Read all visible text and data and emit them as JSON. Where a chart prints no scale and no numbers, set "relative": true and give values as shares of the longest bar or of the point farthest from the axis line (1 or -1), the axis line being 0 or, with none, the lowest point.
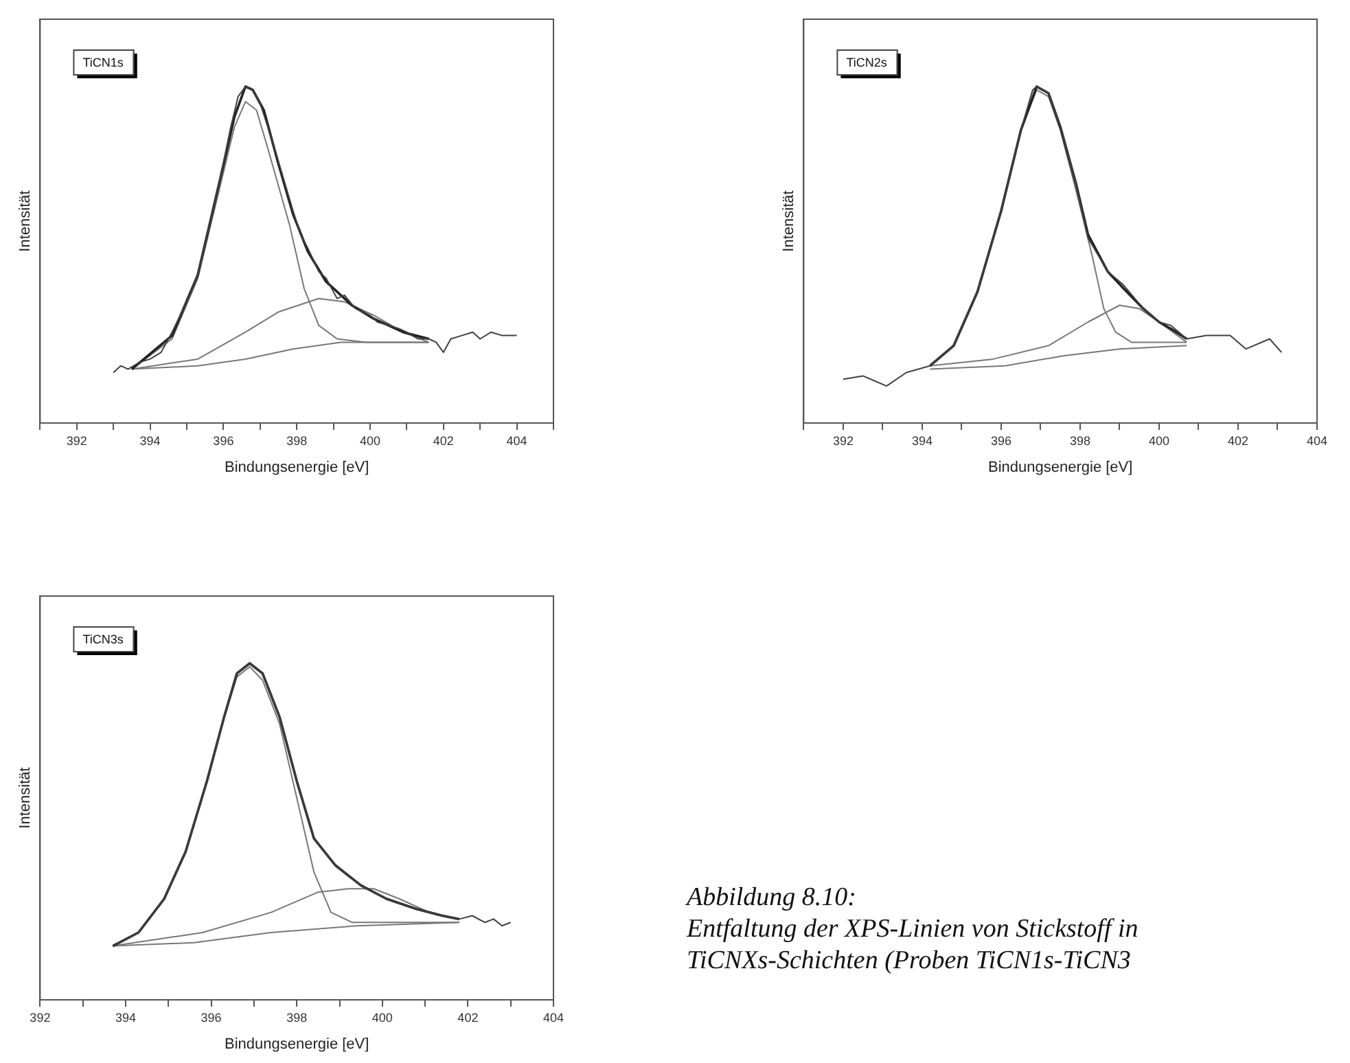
{
  "chart_data": [
    {
      "type": "line",
      "xlabel": "Bindungsenergie [eV]",
      "ylabel": "Intensität",
      "relative": true,
      "xlim": [
        391,
        405
      ],
      "xticks": [
        {
          "value": 391,
          "label": null
        },
        392,
        {
          "value": 393,
          "label": null
        },
        394,
        {
          "value": 395,
          "label": null
        },
        396,
        {
          "value": 397,
          "label": null
        },
        398,
        {
          "value": 399,
          "label": null
        },
        400,
        {
          "value": 401,
          "label": null
        },
        402,
        {
          "value": 403,
          "label": null
        },
        404,
        {
          "value": 405,
          "label": null
        }
      ],
      "annotations": [
        "TiCN1s"
      ],
      "series": [
        {
          "color": "#404040",
          "x": [
            393.0,
            393.2,
            393.4,
            393.7,
            394.0,
            394.3,
            394.6,
            395.0,
            395.3,
            395.6,
            395.9,
            396.2,
            396.4,
            396.6,
            396.8,
            397.0,
            397.3,
            397.6,
            397.9,
            398.1,
            398.3,
            398.6,
            398.8,
            399.1,
            399.3,
            399.6,
            400.0,
            400.2,
            400.5,
            400.8,
            401.0,
            401.3,
            401.6,
            401.8,
            402.0,
            402.2,
            402.5,
            402.8,
            403.0,
            403.3,
            403.6,
            404.0
          ],
          "values": [
            0.15,
            0.17,
            0.16,
            0.18,
            0.19,
            0.21,
            0.27,
            0.36,
            0.44,
            0.58,
            0.72,
            0.88,
            0.97,
            1.0,
            0.99,
            0.95,
            0.85,
            0.74,
            0.63,
            0.56,
            0.52,
            0.45,
            0.43,
            0.37,
            0.38,
            0.34,
            0.32,
            0.3,
            0.29,
            0.28,
            0.27,
            0.25,
            0.25,
            0.24,
            0.21,
            0.25,
            0.26,
            0.27,
            0.25,
            0.27,
            0.26,
            0.26
          ]
        },
        {
          "color": "#222222",
          "x": [
            393.5,
            394.6,
            395.3,
            395.9,
            396.3,
            396.6,
            396.8,
            397.1,
            397.5,
            397.9,
            398.3,
            398.8,
            399.5,
            400.1,
            400.9,
            401.6
          ],
          "values": [
            0.16,
            0.26,
            0.44,
            0.72,
            0.91,
            1.0,
            0.99,
            0.93,
            0.77,
            0.62,
            0.51,
            0.42,
            0.35,
            0.31,
            0.27,
            0.25
          ]
        },
        {
          "color": "#777777",
          "x": [
            393.5,
            394.6,
            395.3,
            395.9,
            396.3,
            396.6,
            396.9,
            397.2,
            397.8,
            398.2,
            398.6,
            399.1,
            399.9,
            401.6
          ],
          "values": [
            0.16,
            0.25,
            0.43,
            0.7,
            0.88,
            0.955,
            0.93,
            0.82,
            0.59,
            0.4,
            0.29,
            0.25,
            0.24,
            0.24
          ]
        },
        {
          "color": "#777777",
          "x": [
            393.5,
            395.3,
            396.6,
            397.5,
            398.6,
            399.3,
            400.1,
            400.9,
            401.6
          ],
          "values": [
            0.16,
            0.19,
            0.27,
            0.33,
            0.37,
            0.36,
            0.32,
            0.27,
            0.24
          ]
        },
        {
          "color": "#777777",
          "x": [
            393.5,
            395.3,
            396.6,
            397.9,
            399.2,
            400.5,
            401.6
          ],
          "values": [
            0.16,
            0.17,
            0.19,
            0.22,
            0.24,
            0.24,
            0.24
          ]
        }
      ]
    },
    {
      "type": "line",
      "xlabel": "Bindungsenergie [eV]",
      "ylabel": "Intensität",
      "relative": true,
      "xlim": [
        391,
        404
      ],
      "xticks": [
        {
          "value": 391,
          "label": null
        },
        392,
        {
          "value": 393,
          "label": null
        },
        394,
        {
          "value": 395,
          "label": null
        },
        396,
        {
          "value": 397,
          "label": null
        },
        398,
        {
          "value": 399,
          "label": null
        },
        400,
        {
          "value": 401,
          "label": null
        },
        402,
        {
          "value": 403,
          "label": null
        },
        404
      ],
      "annotations": [
        "TiCN2s"
      ],
      "series": [
        {
          "color": "#404040",
          "x": [
            392.0,
            392.5,
            393.1,
            393.6,
            394.2,
            394.8,
            395.4,
            396.0,
            396.5,
            396.8,
            396.9,
            397.2,
            397.5,
            397.9,
            398.2,
            398.7,
            399.1,
            399.6,
            400.0,
            400.3,
            400.7,
            401.2,
            401.8,
            402.2,
            402.8,
            403.1
          ],
          "values": [
            0.13,
            0.14,
            0.11,
            0.15,
            0.17,
            0.23,
            0.39,
            0.63,
            0.87,
            0.99,
            1.0,
            0.98,
            0.88,
            0.71,
            0.55,
            0.45,
            0.41,
            0.34,
            0.3,
            0.29,
            0.25,
            0.26,
            0.26,
            0.22,
            0.25,
            0.21
          ]
        },
        {
          "color": "#222222",
          "x": [
            394.2,
            394.8,
            395.4,
            396.0,
            396.5,
            396.9,
            397.2,
            397.5,
            397.9,
            398.2,
            398.7,
            399.1,
            399.6,
            400.0,
            400.3,
            400.7
          ],
          "values": [
            0.17,
            0.23,
            0.39,
            0.63,
            0.87,
            1.0,
            0.98,
            0.88,
            0.71,
            0.56,
            0.45,
            0.4,
            0.34,
            0.3,
            0.28,
            0.25
          ]
        },
        {
          "color": "#777777",
          "x": [
            394.2,
            394.8,
            395.4,
            396.0,
            396.5,
            396.9,
            397.2,
            397.5,
            397.9,
            398.3,
            398.6,
            398.9,
            399.3,
            400.7
          ],
          "values": [
            0.17,
            0.23,
            0.39,
            0.63,
            0.87,
            0.99,
            0.97,
            0.87,
            0.69,
            0.5,
            0.34,
            0.27,
            0.24,
            0.24
          ]
        },
        {
          "color": "#777777",
          "x": [
            394.2,
            395.8,
            397.2,
            398.2,
            399.0,
            399.5,
            400.0,
            400.7
          ],
          "values": [
            0.17,
            0.19,
            0.23,
            0.3,
            0.35,
            0.34,
            0.3,
            0.24
          ]
        },
        {
          "color": "#777777",
          "x": [
            394.2,
            396.1,
            397.6,
            399.0,
            400.7
          ],
          "values": [
            0.16,
            0.17,
            0.2,
            0.22,
            0.23
          ]
        }
      ]
    },
    {
      "type": "line",
      "xlabel": "Bindungsenergie [eV]",
      "ylabel": "Intensität",
      "relative": true,
      "xlim": [
        392,
        404
      ],
      "xticks": [
        392,
        {
          "value": 393,
          "label": null
        },
        394,
        {
          "value": 395,
          "label": null
        },
        396,
        {
          "value": 397,
          "label": null
        },
        398,
        {
          "value": 399,
          "label": null
        },
        400,
        {
          "value": 401,
          "label": null
        },
        402,
        {
          "value": 403,
          "label": null
        },
        404
      ],
      "annotations": [
        "TiCN3s",
        "Abbildung 8.10:",
        "Entfaltung der XPS-Linien von Stickstoff in",
        "TiCNXs-Schichten (Proben TiCN1s-TiCN3"
      ],
      "series": [
        {
          "color": "#404040",
          "x": [
            393.7,
            394.3,
            394.9,
            395.4,
            395.9,
            396.3,
            396.6,
            396.9,
            397.2,
            397.6,
            398.0,
            398.4,
            398.9,
            399.5,
            400.1,
            400.8,
            401.4,
            401.8,
            402.1,
            402.4,
            402.6,
            402.8,
            403.0
          ],
          "values": [
            0.16,
            0.2,
            0.3,
            0.44,
            0.65,
            0.84,
            0.97,
            1.0,
            0.97,
            0.84,
            0.65,
            0.48,
            0.4,
            0.34,
            0.3,
            0.27,
            0.25,
            0.24,
            0.25,
            0.23,
            0.24,
            0.22,
            0.23
          ]
        },
        {
          "color": "#222222",
          "x": [
            393.7,
            394.3,
            394.9,
            395.4,
            395.9,
            396.3,
            396.6,
            396.9,
            397.2,
            397.6,
            398.0,
            398.4,
            398.9,
            399.5,
            400.1,
            400.8,
            401.4,
            401.8
          ],
          "values": [
            0.16,
            0.2,
            0.3,
            0.44,
            0.65,
            0.84,
            0.97,
            1.0,
            0.97,
            0.84,
            0.65,
            0.48,
            0.4,
            0.34,
            0.3,
            0.27,
            0.25,
            0.24
          ]
        },
        {
          "color": "#777777",
          "x": [
            393.7,
            394.3,
            394.9,
            395.4,
            395.9,
            396.3,
            396.6,
            396.9,
            397.2,
            397.6,
            398.0,
            398.4,
            398.8,
            399.3,
            401.8
          ],
          "values": [
            0.16,
            0.2,
            0.3,
            0.44,
            0.65,
            0.84,
            0.96,
            0.99,
            0.95,
            0.82,
            0.6,
            0.38,
            0.26,
            0.23,
            0.23
          ]
        },
        {
          "color": "#777777",
          "x": [
            393.7,
            395.8,
            397.4,
            398.5,
            399.2,
            399.8,
            400.4,
            401.1,
            401.8
          ],
          "values": [
            0.16,
            0.2,
            0.26,
            0.32,
            0.33,
            0.33,
            0.3,
            0.26,
            0.24
          ]
        },
        {
          "color": "#777777",
          "x": [
            393.7,
            395.6,
            397.4,
            399.4,
            401.8
          ],
          "values": [
            0.16,
            0.17,
            0.2,
            0.22,
            0.23
          ]
        }
      ]
    }
  ]
}
